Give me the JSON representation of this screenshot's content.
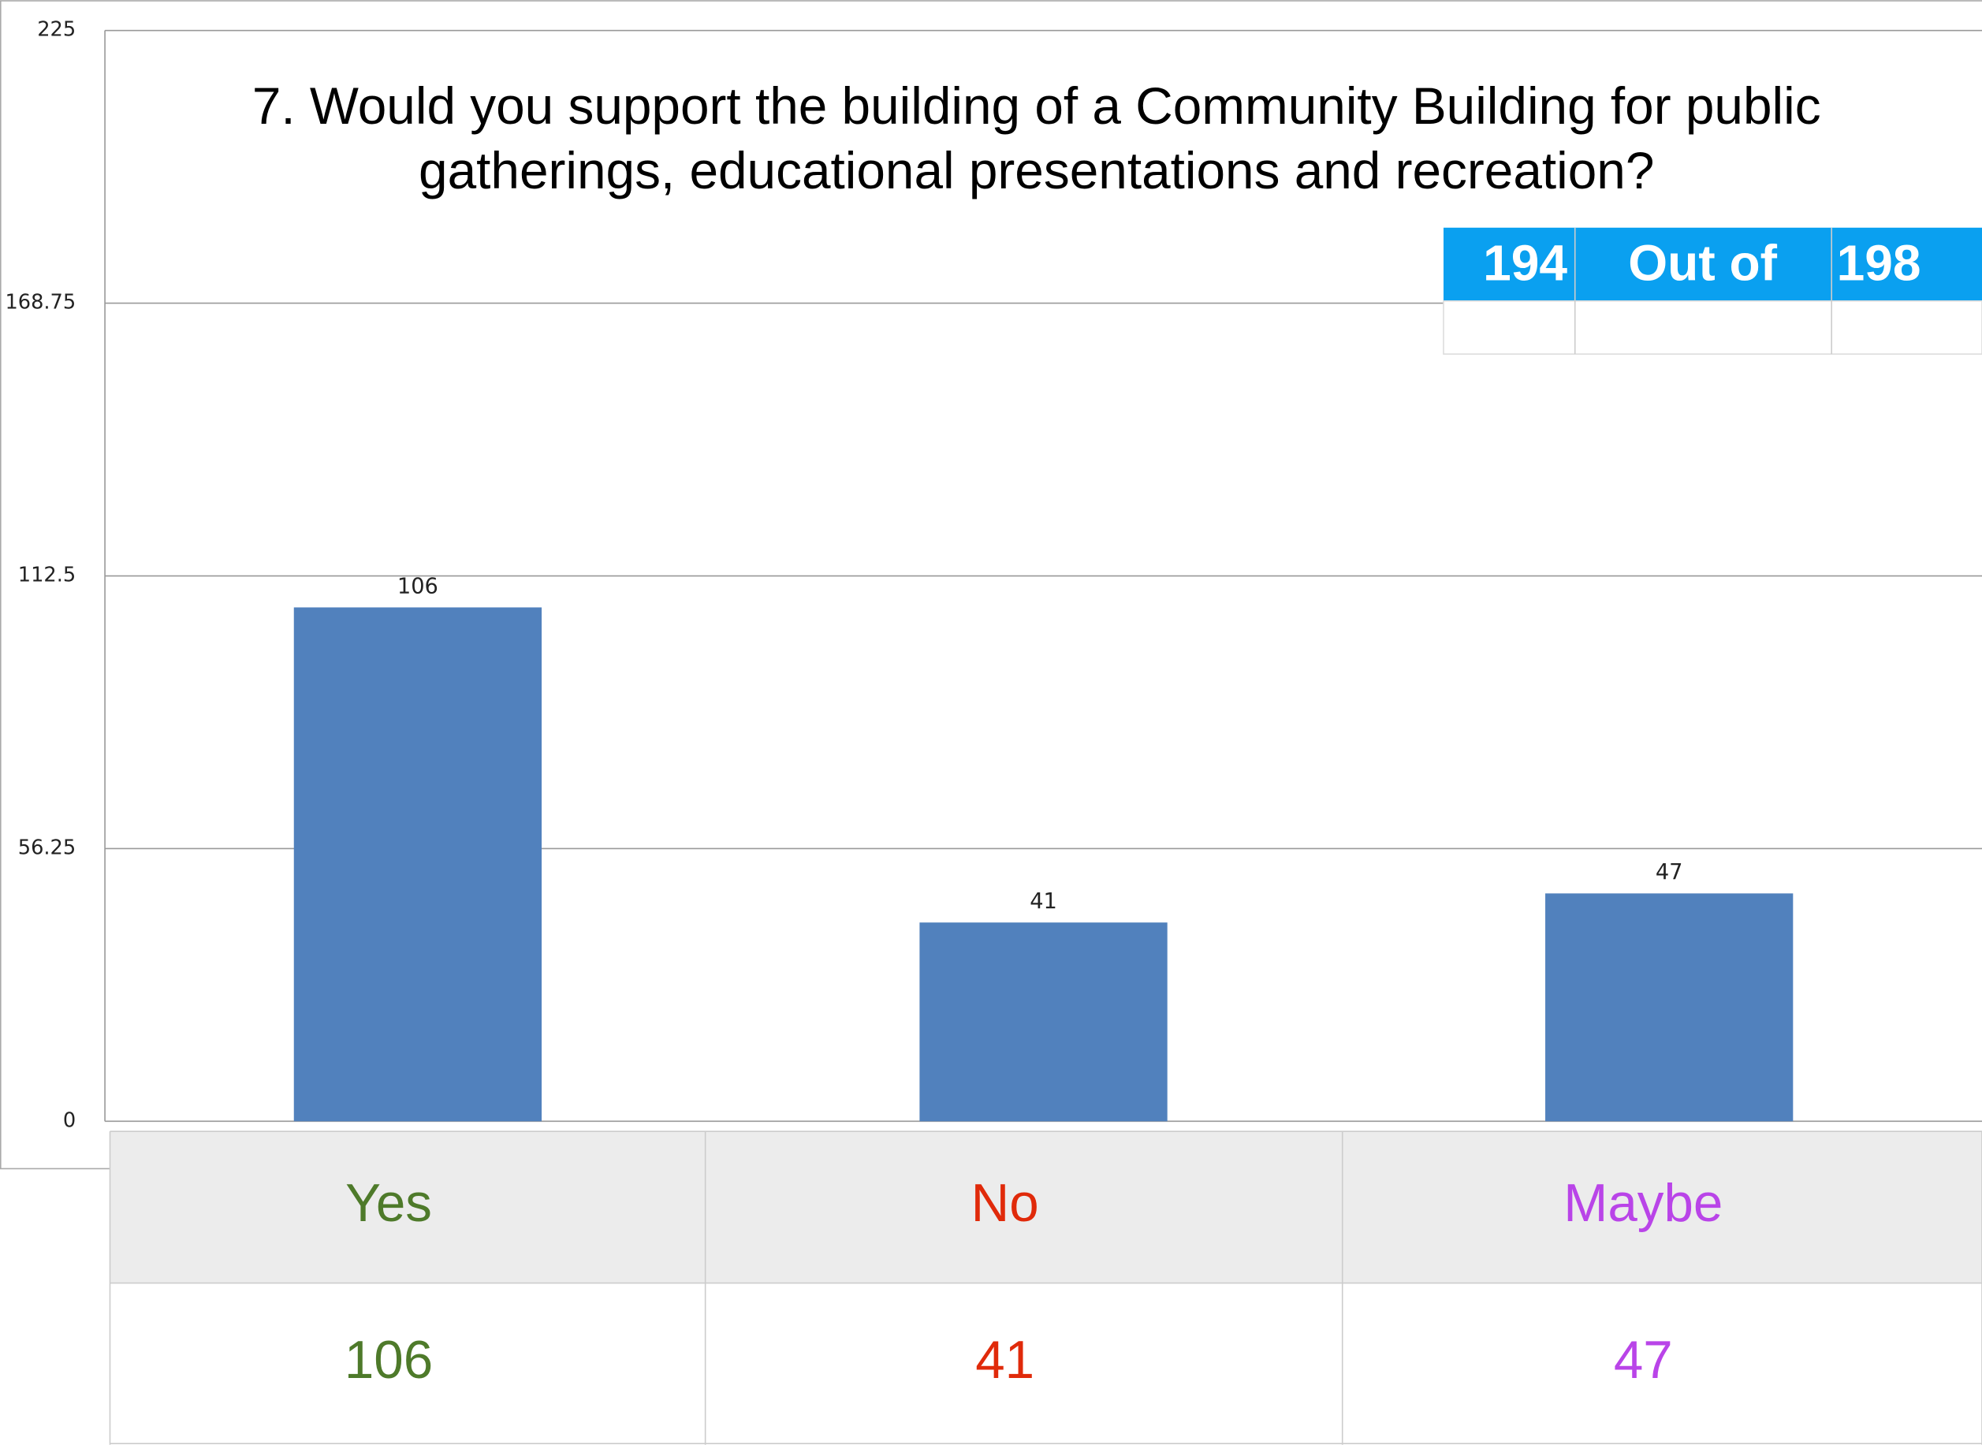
{
  "chart_data": {
    "type": "bar",
    "title": [
      "7. Would you support the building of a Community Building for public",
      "gatherings, educational presentations and recreation?"
    ],
    "categories": [
      "Yes",
      "No",
      "Maybe"
    ],
    "category_colors": [
      "#4e7a2a",
      "#e02a0a",
      "#b944e8"
    ],
    "values": [
      106,
      41,
      47
    ],
    "color": "#5181bd",
    "ylim": [
      0,
      225
    ],
    "yticks": [
      0,
      56.25,
      112.5,
      168.75,
      225
    ],
    "grid": true,
    "annotation": {
      "responses": 194,
      "label": "Out of",
      "total": 198,
      "color": "#0aa0f0"
    }
  }
}
